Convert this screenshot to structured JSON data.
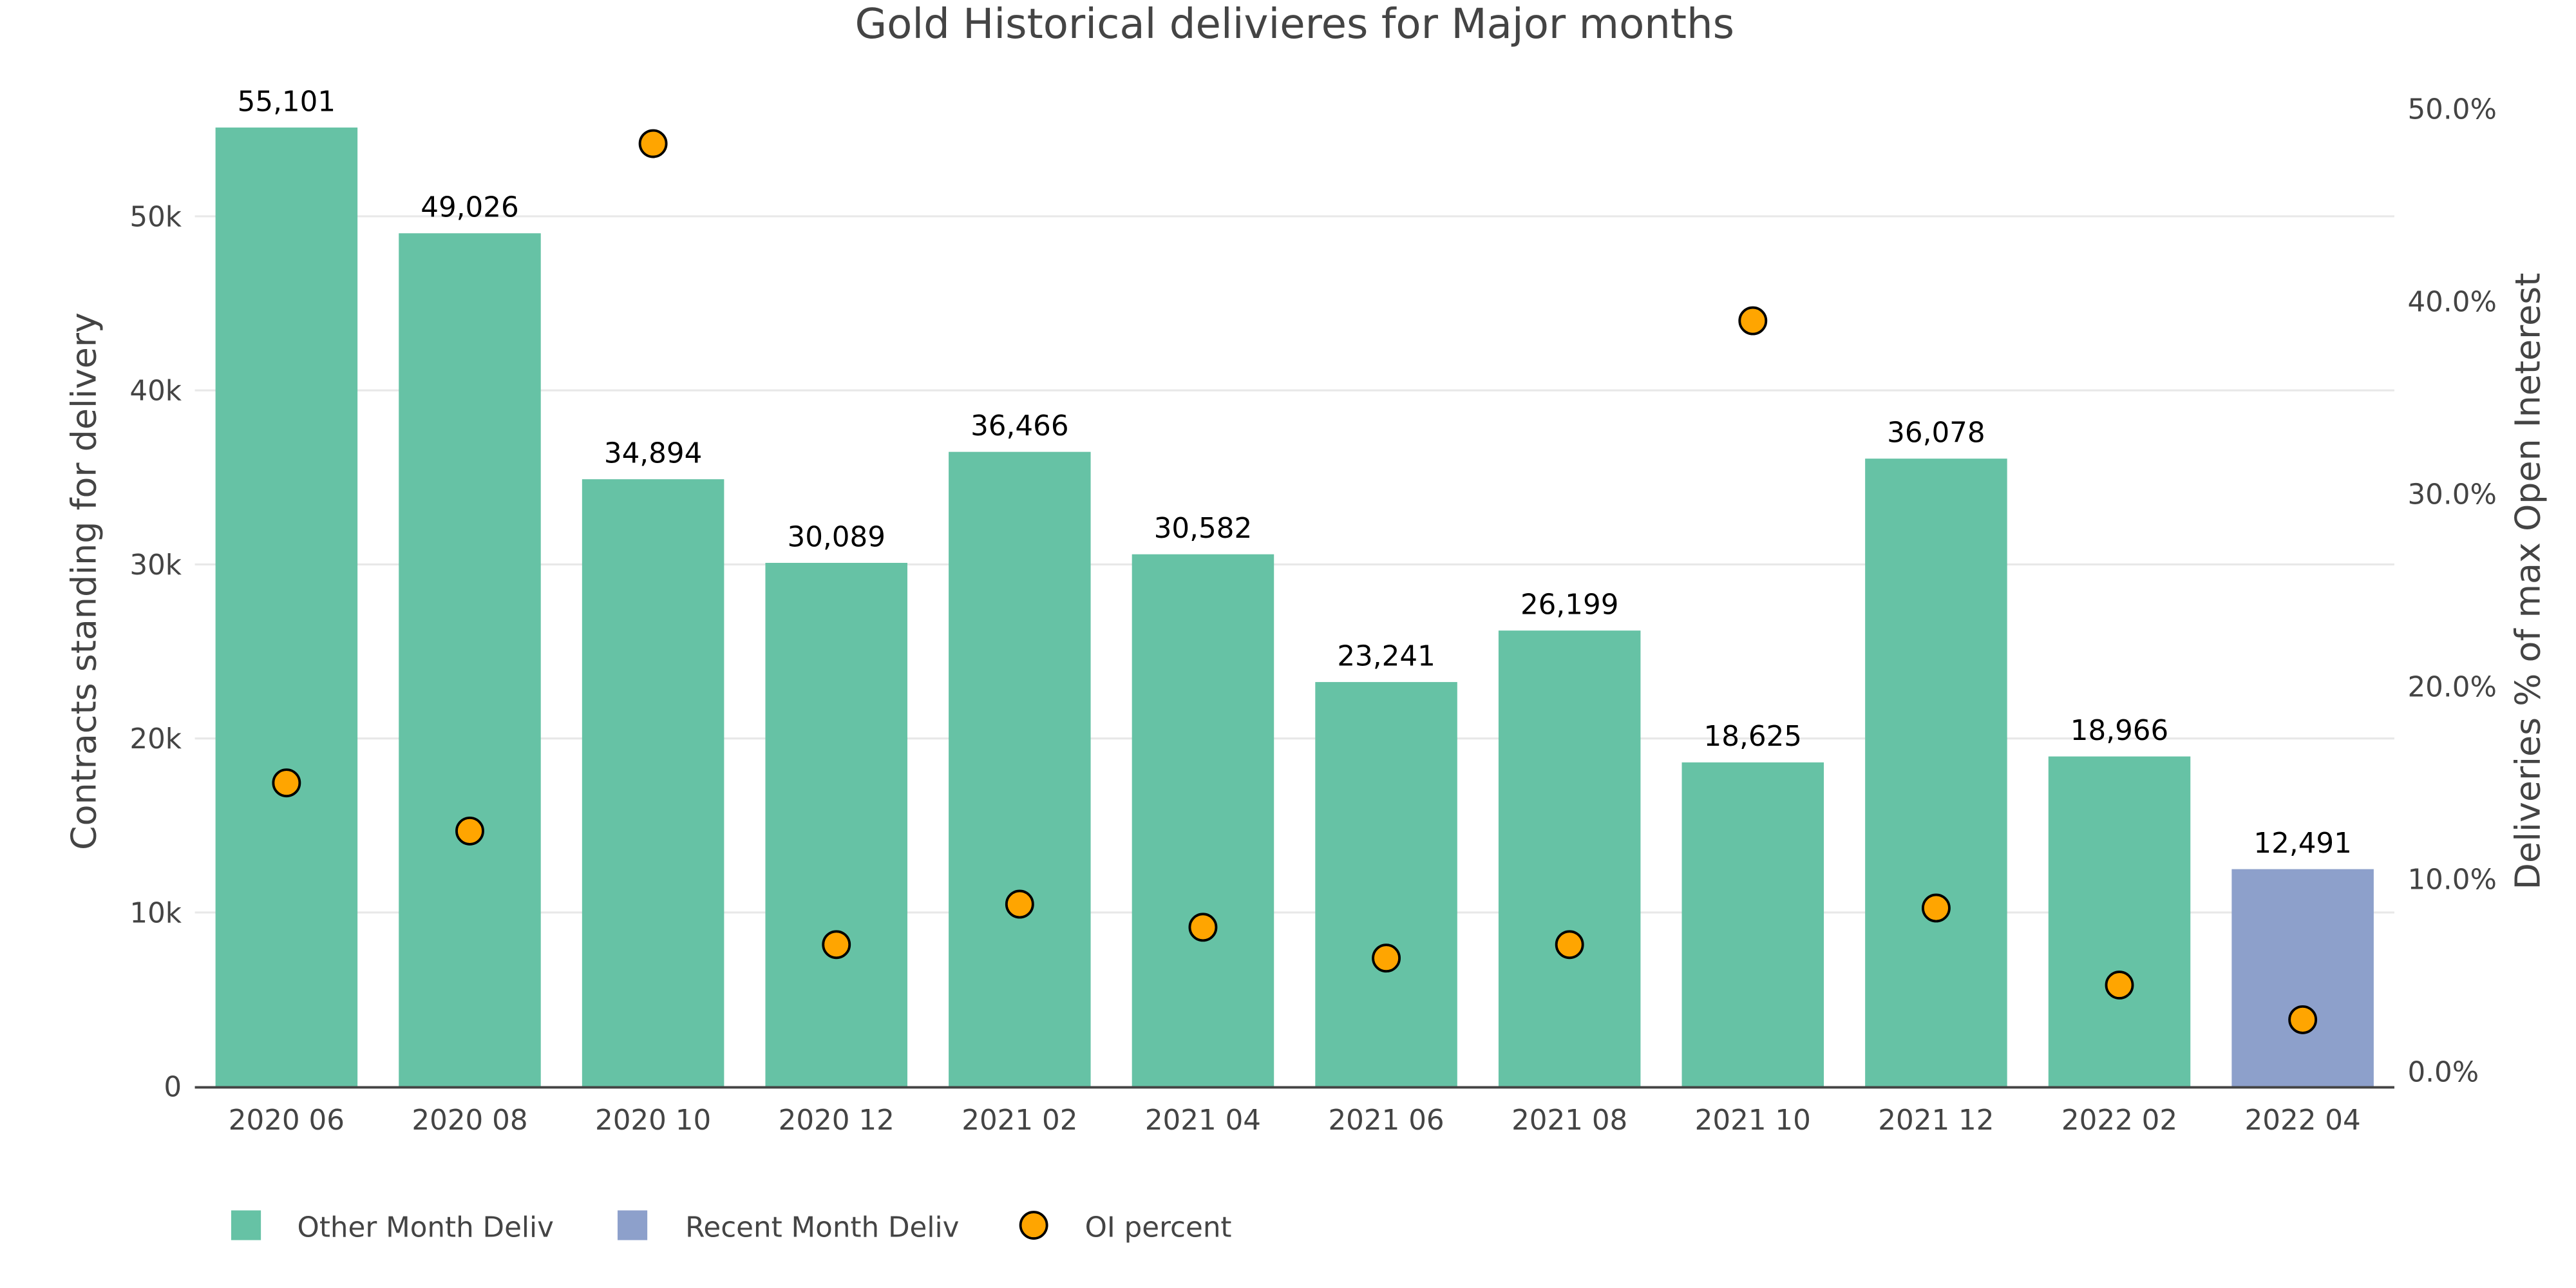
{
  "chart_data": {
    "type": "bar",
    "title": "Gold Historical delivieres for Major months",
    "xlabel": "",
    "ylabel": "Contracts standing for delivery",
    "y2label": "Deliveries % of max Open Ineterest",
    "ylim": [
      0,
      56000
    ],
    "y2lim": [
      0,
      52
    ],
    "yticks": [
      0,
      10000,
      20000,
      30000,
      40000,
      50000
    ],
    "ytick_labels": [
      "0",
      "10k",
      "20k",
      "30k",
      "40k",
      "50k"
    ],
    "y2ticks": [
      0,
      10,
      20,
      30,
      40,
      50
    ],
    "y2tick_labels": [
      "0.0%",
      "10.0%",
      "20.0%",
      "30.0%",
      "40.0%",
      "50.0%"
    ],
    "grid": true,
    "legend_position": "bottom-left",
    "categories": [
      "2020 06",
      "2020 08",
      "2020 10",
      "2020 12",
      "2021 02",
      "2021 04",
      "2021 06",
      "2021 08",
      "2021 10",
      "2021 12",
      "2022 02",
      "2022 04"
    ],
    "series": [
      {
        "name": "Other Month Deliv",
        "type": "bar",
        "color": "#66c2a5",
        "values": [
          55101,
          49026,
          34894,
          30089,
          36466,
          30582,
          23241,
          26199,
          18625,
          36078,
          18966,
          null
        ],
        "labels": [
          "55,101",
          "49,026",
          "34,894",
          "30,089",
          "36,466",
          "30,582",
          "23,241",
          "26,199",
          "18,625",
          "36,078",
          "18,966",
          null
        ]
      },
      {
        "name": "Recent Month Deliv",
        "type": "bar",
        "color": "#8da0cb",
        "values": [
          null,
          null,
          null,
          null,
          null,
          null,
          null,
          null,
          null,
          null,
          null,
          12491
        ],
        "labels": [
          null,
          null,
          null,
          null,
          null,
          null,
          null,
          null,
          null,
          null,
          null,
          "12,491"
        ]
      },
      {
        "name": "OI percent",
        "type": "scatter",
        "axis": "y2",
        "color": "#ffa500",
        "values": [
          15.0,
          12.5,
          48.2,
          6.6,
          8.7,
          7.5,
          5.9,
          6.6,
          39.0,
          8.5,
          4.5,
          2.7
        ]
      }
    ]
  }
}
